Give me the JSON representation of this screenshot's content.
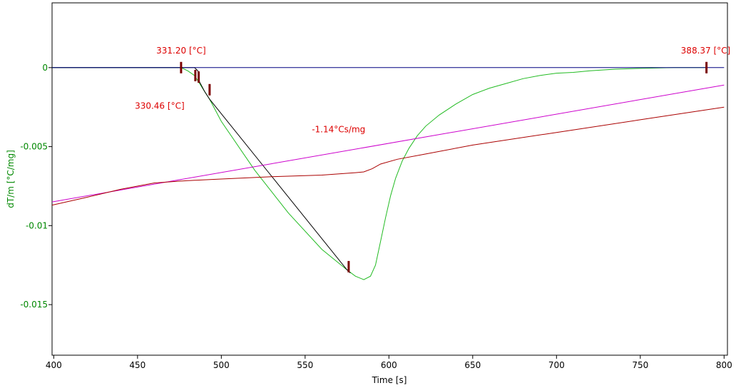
{
  "chart_data": {
    "type": "line",
    "xlabel": "Time [s]",
    "ylabel": "dT/m  [°C/mg]",
    "xlim": [
      399,
      802
    ],
    "ylim": [
      -0.0182,
      0.0041
    ],
    "x_ticks": [
      {
        "value": 400,
        "label": "400"
      },
      {
        "value": 450,
        "label": "450"
      },
      {
        "value": 500,
        "label": "500"
      },
      {
        "value": 550,
        "label": "550"
      },
      {
        "value": 600,
        "label": "600"
      },
      {
        "value": 650,
        "label": "650"
      },
      {
        "value": 700,
        "label": "700"
      },
      {
        "value": 750,
        "label": "750"
      },
      {
        "value": 800,
        "label": "800"
      }
    ],
    "y_ticks": [
      {
        "value": 0,
        "label": "0"
      },
      {
        "value": -0.005,
        "label": "-0.005"
      },
      {
        "value": -0.01,
        "label": "-0.01"
      },
      {
        "value": -0.015,
        "label": "-0.015"
      }
    ],
    "colors": {
      "axis": "#000000",
      "ylabel": "#008800",
      "green": "#22bb22",
      "black": "#000000",
      "blue": "#000080",
      "magenta": "#cc00cc",
      "red": "#aa0000",
      "annotation": "#dd0000",
      "marker": "#7a0000"
    },
    "series": [
      {
        "color": "#22bb22",
        "points": [
          [
            399,
            0
          ],
          [
            450,
            0
          ],
          [
            472,
            0
          ],
          [
            476,
            0
          ],
          [
            480,
            -0.0002
          ],
          [
            484,
            -0.0005
          ],
          [
            487,
            -0.001
          ],
          [
            490,
            -0.0015
          ],
          [
            493,
            -0.002
          ],
          [
            500,
            -0.0034
          ],
          [
            520,
            -0.0065
          ],
          [
            540,
            -0.0092
          ],
          [
            560,
            -0.0115
          ],
          [
            575,
            -0.0128
          ],
          [
            580,
            -0.0132
          ],
          [
            585,
            -0.01342
          ],
          [
            589,
            -0.0132
          ],
          [
            592,
            -0.0125
          ],
          [
            595,
            -0.011
          ],
          [
            598,
            -0.0095
          ],
          [
            601,
            -0.0081
          ],
          [
            604,
            -0.007
          ],
          [
            608,
            -0.0059
          ],
          [
            612,
            -0.0051
          ],
          [
            617,
            -0.0043
          ],
          [
            622,
            -0.0037
          ],
          [
            630,
            -0.003
          ],
          [
            640,
            -0.0023
          ],
          [
            650,
            -0.0017
          ],
          [
            660,
            -0.0013
          ],
          [
            670,
            -0.001
          ],
          [
            680,
            -0.0007
          ],
          [
            690,
            -0.0005
          ],
          [
            700,
            -0.00035
          ],
          [
            710,
            -0.0003
          ],
          [
            720,
            -0.0002
          ],
          [
            735,
            -0.0001
          ],
          [
            750,
            -5e-05
          ],
          [
            770,
            0
          ],
          [
            790,
            0
          ]
        ]
      },
      {
        "color": "#000000",
        "points": [
          [
            399,
            0
          ],
          [
            484,
            0
          ],
          [
            486,
            -0.0002
          ],
          [
            487,
            -0.0009
          ],
          [
            490,
            -0.0015
          ],
          [
            493,
            -0.002
          ],
          [
            575,
            -0.0128
          ],
          [
            577,
            -0.013
          ]
        ]
      },
      {
        "color": "#000080",
        "points": [
          [
            399,
            0
          ],
          [
            800,
            0
          ]
        ]
      },
      {
        "color": "#cc00cc",
        "points": [
          [
            399,
            -0.0085
          ],
          [
            800,
            -0.0011
          ]
        ]
      },
      {
        "color": "#aa0000",
        "points": [
          [
            399,
            -0.0087
          ],
          [
            420,
            -0.0082
          ],
          [
            440,
            -0.0077
          ],
          [
            460,
            -0.0073
          ],
          [
            480,
            -0.00715
          ],
          [
            500,
            -0.00705
          ],
          [
            530,
            -0.0069
          ],
          [
            560,
            -0.0068
          ],
          [
            580,
            -0.00665
          ],
          [
            585,
            -0.0066
          ],
          [
            590,
            -0.0064
          ],
          [
            595,
            -0.0061
          ],
          [
            605,
            -0.0058
          ],
          [
            620,
            -0.0055
          ],
          [
            650,
            -0.0049
          ],
          [
            700,
            -0.0041
          ],
          [
            750,
            -0.0033
          ],
          [
            800,
            -0.0025
          ]
        ]
      }
    ],
    "markers": [
      {
        "x": 476,
        "y": 0
      },
      {
        "x": 484.5,
        "y": -0.0005
      },
      {
        "x": 486.5,
        "y": -0.0006
      },
      {
        "x": 493,
        "y": -0.0014
      },
      {
        "x": 576,
        "y": -0.0126
      },
      {
        "x": 789.5,
        "y": 0
      }
    ],
    "annotations": [
      {
        "text": "331.20 [°C]",
        "x": 476,
        "y": 0.0009,
        "anchor": "middle"
      },
      {
        "text": "330.46 [°C]",
        "x": 478,
        "y": -0.0026,
        "anchor": "end"
      },
      {
        "text": "-1.14°Cs/mg",
        "x": 554,
        "y": -0.0041,
        "anchor": "start"
      },
      {
        "text": "388.37 [°C]",
        "x": 789,
        "y": 0.0009,
        "anchor": "middle"
      }
    ]
  }
}
